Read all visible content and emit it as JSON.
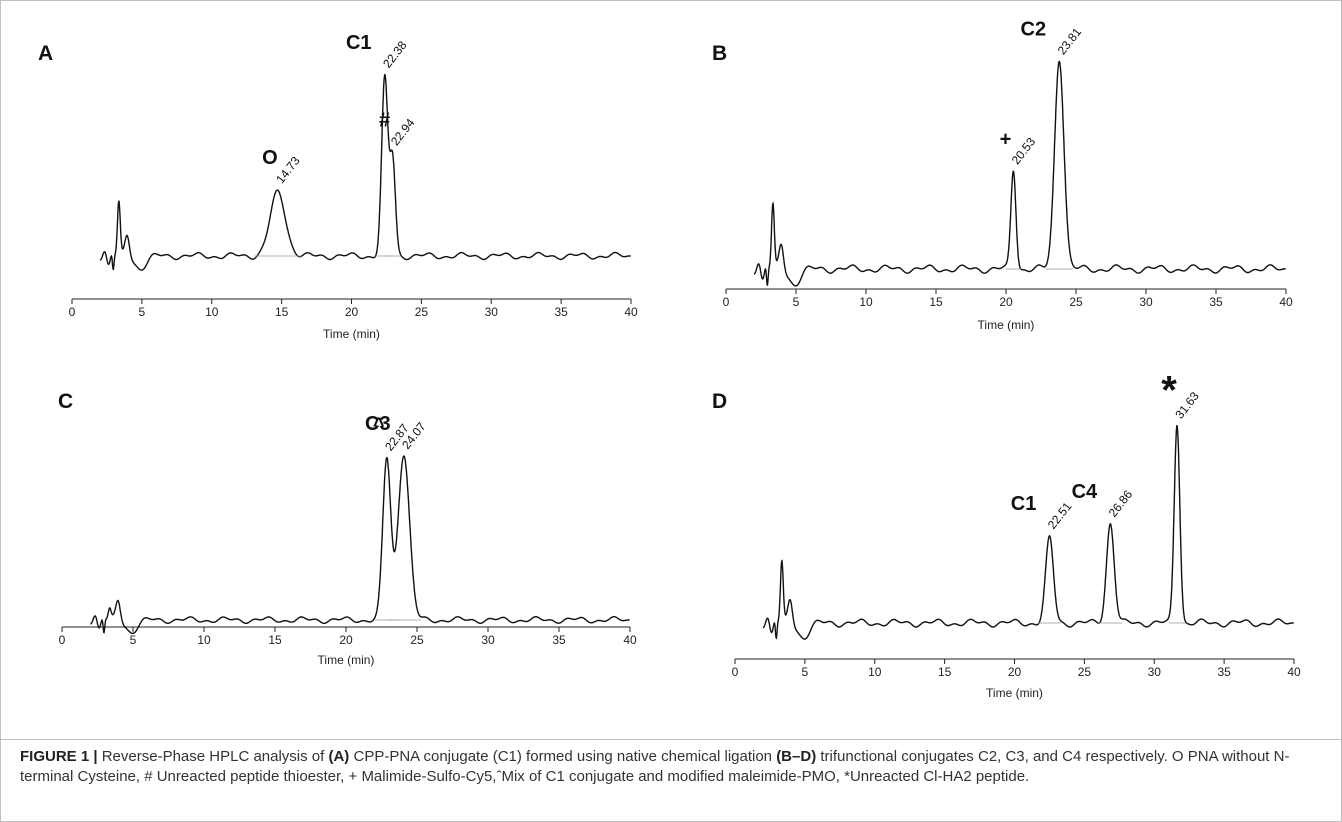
{
  "figure": {
    "caption_label": "FIGURE 1 |",
    "caption_parts": [
      {
        "text": " Reverse-Phase HPLC analysis of ",
        "bold": false
      },
      {
        "text": "(A)",
        "bold": true
      },
      {
        "text": " CPP-PNA conjugate (C1) formed using native chemical ligation ",
        "bold": false
      },
      {
        "text": "(B–D)",
        "bold": true
      },
      {
        "text": " trifunctional conjugates C2, C3, and C4 respectively. O PNA without N-terminal Cysteine, # Unreacted peptide thioester, + Malimide-Sulfo-Cy5,ˆMix of C1 conjugate and modified maleimide-PMO, *Unreacted Cl-HA2 peptide.",
        "bold": false
      }
    ],
    "line_color": "#111111",
    "baseline_color": "#999999"
  },
  "chart_data": [
    {
      "panel": "A",
      "type": "line",
      "xlabel": "Time (min)",
      "xlim": [
        0,
        40
      ],
      "x_ticks": [
        0,
        5,
        10,
        15,
        20,
        25,
        30,
        35,
        40
      ],
      "peaks": [
        {
          "rt": 14.73,
          "label": "14.73",
          "marker": "O",
          "height": 0.36,
          "width": 0.55
        },
        {
          "rt": 22.38,
          "label": "22.38",
          "marker": "C1",
          "height": 1.0,
          "width": 0.22
        },
        {
          "rt": 22.94,
          "label": "22.94",
          "marker": "#",
          "height": 0.55,
          "width": 0.2
        }
      ]
    },
    {
      "panel": "B",
      "type": "line",
      "xlabel": "Time (min)",
      "xlim": [
        0,
        40
      ],
      "x_ticks": [
        0,
        5,
        10,
        15,
        20,
        25,
        30,
        35,
        40
      ],
      "peaks": [
        {
          "rt": 20.53,
          "label": "20.53",
          "marker": "+",
          "height": 0.47,
          "width": 0.18
        },
        {
          "rt": 23.81,
          "label": "23.81",
          "marker": "C2",
          "height": 1.0,
          "width": 0.33
        }
      ]
    },
    {
      "panel": "C",
      "type": "line",
      "xlabel": "Time (min)",
      "xlim": [
        0,
        40
      ],
      "x_ticks": [
        0,
        5,
        10,
        15,
        20,
        25,
        30,
        35,
        40
      ],
      "peaks": [
        {
          "rt": 22.87,
          "label": "22.87",
          "marker": "^",
          "height": 0.96,
          "width": 0.28
        },
        {
          "rt": 24.07,
          "label": "24.07",
          "marker": "C3",
          "height": 1.0,
          "width": 0.4
        }
      ]
    },
    {
      "panel": "D",
      "type": "line",
      "xlabel": "Time (min)",
      "xlim": [
        0,
        40
      ],
      "x_ticks": [
        0,
        5,
        10,
        15,
        20,
        25,
        30,
        35,
        40
      ],
      "peaks": [
        {
          "rt": 22.51,
          "label": "22.51",
          "marker": "C1",
          "height": 0.42,
          "width": 0.28
        },
        {
          "rt": 26.86,
          "label": "26.86",
          "marker": "C4",
          "height": 0.5,
          "width": 0.28
        },
        {
          "rt": 31.63,
          "label": "31.63",
          "marker": "*",
          "height": 1.0,
          "width": 0.2
        }
      ]
    }
  ]
}
